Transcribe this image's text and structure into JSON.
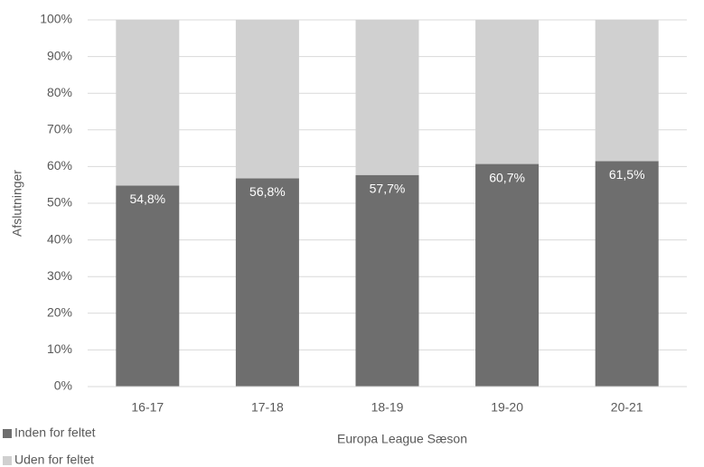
{
  "chart_data": {
    "type": "stacked_bar",
    "x_label": "Europa League Sæson",
    "y_label": "Afslutninger",
    "categories": [
      "16-17",
      "17-18",
      "18-19",
      "19-20",
      "20-21"
    ],
    "series": [
      {
        "name": "Inden for feltet",
        "color": "#6e6e6e",
        "values": [
          54.8,
          56.8,
          57.7,
          60.7,
          61.5
        ],
        "value_labels": [
          "54,8%",
          "56,8%",
          "57,7%",
          "60,7%",
          "61,5%"
        ]
      },
      {
        "name": "Uden for feltet",
        "color": "#d0d0d0",
        "values": [
          45.2,
          43.2,
          42.3,
          39.3,
          38.5
        ]
      }
    ],
    "ylim": [
      0,
      100
    ],
    "yticks": [
      {
        "value": 0,
        "label": "0%"
      },
      {
        "value": 10,
        "label": "10%"
      },
      {
        "value": 20,
        "label": "20%"
      },
      {
        "value": 30,
        "label": "30%"
      },
      {
        "value": 40,
        "label": "40%"
      },
      {
        "value": 50,
        "label": "50%"
      },
      {
        "value": 60,
        "label": "60%"
      },
      {
        "value": 70,
        "label": "70%"
      },
      {
        "value": 80,
        "label": "80%"
      },
      {
        "value": 90,
        "label": "90%"
      },
      {
        "value": 100,
        "label": "100%"
      }
    ],
    "grid": true,
    "legend": "bottom-left"
  }
}
